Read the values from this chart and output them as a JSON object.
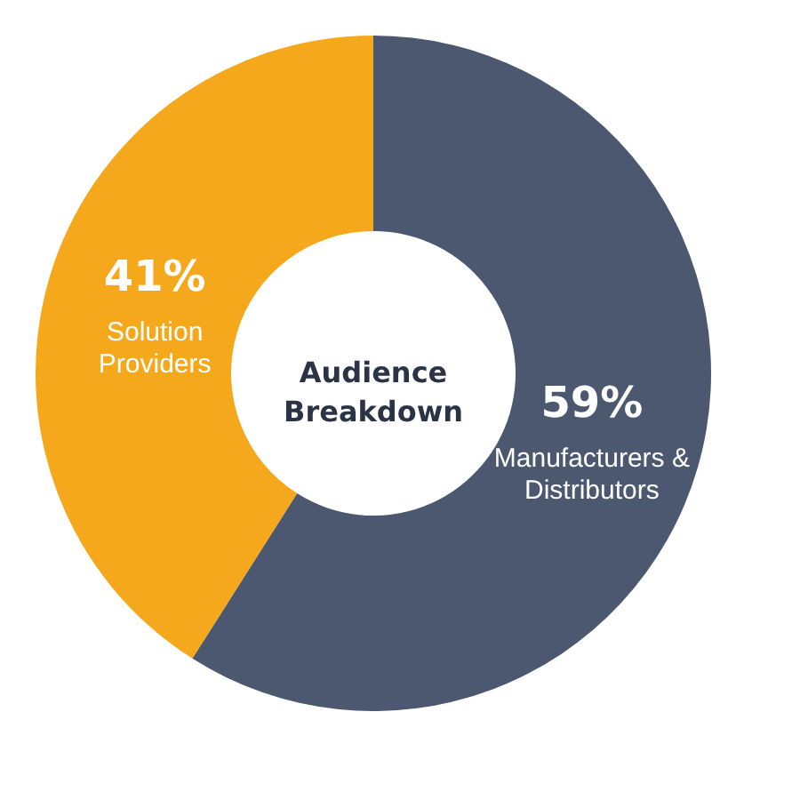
{
  "chart_data": {
    "type": "donut",
    "title": "Audience Breakdown",
    "categories": [
      "Manufacturers & Distributors",
      "Solution Providers"
    ],
    "values": [
      59,
      41
    ],
    "colors": [
      "#4b586f",
      "#f5a81c"
    ],
    "value_labels": [
      "59%",
      "41%"
    ],
    "legend": false
  }
}
